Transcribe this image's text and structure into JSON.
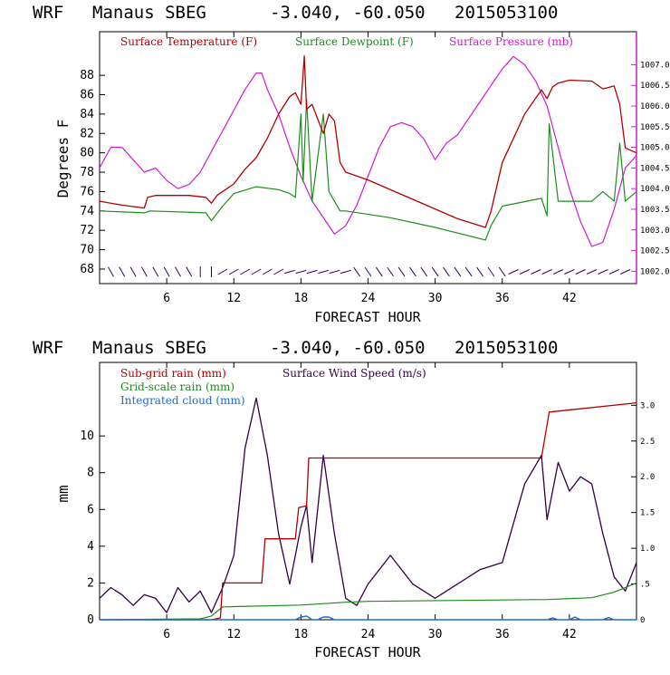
{
  "panel1": {
    "header": {
      "model": "WRF",
      "station": "Manaus SBEG",
      "coords": "-3.040, -60.050",
      "date": "2015053100"
    },
    "colors": {
      "temperature": "#b30000",
      "dewpoint": "#1e8c1e",
      "pressure": "#d21ad2",
      "wind": "#330066"
    }
  },
  "panel2": {
    "header": {
      "model": "WRF",
      "station": "Manaus SBEG",
      "coords": "-3.040, -60.050",
      "date": "2015053100"
    },
    "colors": {
      "subgrid": "#b30000",
      "gridscale": "#1e8c1e",
      "cloud": "#1a6ed2",
      "wind": "#330044"
    }
  },
  "chart_data": [
    {
      "type": "line",
      "xlabel": "FORECAST HOUR",
      "ylabel": "Degrees F",
      "x_ticks": [
        "6",
        "12",
        "18",
        "24",
        "30",
        "36",
        "42"
      ],
      "y_ticks": [
        "68",
        "70",
        "72",
        "74",
        "76",
        "78",
        "80",
        "82",
        "84",
        "86",
        "88"
      ],
      "y2_ticks": [
        "1002.0",
        "1002.5",
        "1003.0",
        "1003.5",
        "1004.0",
        "1004.5",
        "1005.0",
        "1005.5",
        "1006.0",
        "1006.5",
        "1007.0"
      ],
      "xlim": [
        0,
        48
      ],
      "ylim": [
        66.5,
        92.5
      ],
      "y2lim": [
        1001.7,
        1007.8
      ],
      "legend": [
        "Surface Temperature (F)",
        "Surface Dewpoint (F)",
        "Surface Pressure (mb)"
      ],
      "series": [
        {
          "name": "Surface Temperature (F)",
          "x": [
            0,
            2,
            4,
            4.3,
            5,
            8,
            9.5,
            10,
            10.5,
            12,
            13,
            14,
            15,
            16,
            17,
            17.5,
            18,
            18.3,
            18.5,
            19,
            20,
            20.5,
            21,
            21.5,
            22,
            24,
            28,
            32,
            34.5,
            35,
            36,
            38,
            39.5,
            40,
            40.5,
            41,
            42,
            44,
            45,
            46,
            46.5,
            47,
            48
          ],
          "values": [
            75.0,
            74.6,
            74.3,
            75.4,
            75.6,
            75.6,
            75.4,
            74.8,
            75.6,
            76.8,
            78.3,
            79.5,
            81.5,
            84.0,
            85.8,
            86.2,
            85.0,
            90.0,
            84.5,
            85.0,
            82.0,
            84.0,
            83.3,
            79.0,
            78.0,
            77.2,
            75.2,
            73.2,
            72.3,
            74.0,
            79.0,
            84.0,
            86.5,
            85.6,
            86.8,
            87.2,
            87.5,
            87.4,
            86.6,
            86.9,
            85.0,
            80.5,
            80.0
          ]
        },
        {
          "name": "Surface Dewpoint (F)",
          "x": [
            0,
            4,
            4.5,
            9.5,
            10,
            11,
            12,
            14,
            16,
            17,
            17.5,
            18,
            18.2,
            18.5,
            19,
            20,
            20.5,
            21,
            21.5,
            22,
            26,
            30,
            34.5,
            35,
            36,
            39.5,
            40,
            40.2,
            41,
            44,
            45,
            46,
            46.5,
            47,
            48
          ],
          "values": [
            74.0,
            73.8,
            74.0,
            73.8,
            73.0,
            74.5,
            75.8,
            76.5,
            76.2,
            75.8,
            75.4,
            84.0,
            77.0,
            85.5,
            75.0,
            84.0,
            76.0,
            75.0,
            74.0,
            74.0,
            73.3,
            72.3,
            71.0,
            72.5,
            74.5,
            75.3,
            73.5,
            83.0,
            75.0,
            75.0,
            76.0,
            75.0,
            81.0,
            75.0,
            76.0
          ]
        },
        {
          "name": "Surface Pressure (mb)",
          "x": [
            0,
            1,
            2,
            3,
            4,
            5,
            6,
            7,
            8,
            9,
            10,
            11,
            12,
            13,
            14,
            14.5,
            15,
            16,
            17,
            18,
            19,
            20,
            21,
            22,
            23,
            24,
            25,
            26,
            27,
            28,
            29,
            30,
            31,
            32,
            33,
            34,
            35,
            36,
            37,
            38,
            39,
            40,
            41,
            42,
            43,
            44,
            45,
            46,
            47,
            48
          ],
          "values": [
            1004.5,
            1005.0,
            1005.0,
            1004.7,
            1004.4,
            1004.5,
            1004.2,
            1004.0,
            1004.1,
            1004.4,
            1004.9,
            1005.4,
            1005.9,
            1006.4,
            1006.8,
            1006.8,
            1006.4,
            1005.8,
            1005.0,
            1004.3,
            1003.7,
            1003.3,
            1002.9,
            1003.1,
            1003.6,
            1004.3,
            1005.0,
            1005.5,
            1005.6,
            1005.5,
            1005.2,
            1004.7,
            1005.1,
            1005.3,
            1005.7,
            1006.1,
            1006.5,
            1006.9,
            1007.2,
            1007.0,
            1006.6,
            1006.0,
            1005.0,
            1004.0,
            1003.2,
            1002.6,
            1002.7,
            1003.5,
            1004.5,
            1004.8
          ]
        }
      ]
    },
    {
      "type": "line",
      "xlabel": "FORECAST HOUR",
      "ylabel": "mm",
      "x_ticks": [
        "6",
        "12",
        "18",
        "24",
        "30",
        "36",
        "42"
      ],
      "y_ticks": [
        "0",
        "2",
        "4",
        "6",
        "8",
        "10"
      ],
      "y2_ticks": [
        "0",
        ".5",
        "1.0",
        "1.5",
        "2.0",
        "2.5",
        "3.0"
      ],
      "xlim": [
        0,
        48
      ],
      "ylim": [
        0,
        14
      ],
      "y2lim": [
        0,
        3.6
      ],
      "legend": [
        "Sub-grid rain (mm)",
        "Grid-scale rain (mm)",
        "Integrated cloud (mm)",
        "Surface Wind Speed (m/s)"
      ],
      "series": [
        {
          "name": "Sub-grid rain (mm)",
          "x": [
            0,
            10,
            10.8,
            11,
            14.5,
            14.8,
            17.5,
            17.8,
            18.5,
            18.7,
            39.5,
            40.2,
            48
          ],
          "values": [
            0,
            0,
            0.1,
            2.0,
            2.0,
            4.4,
            4.4,
            6.1,
            6.2,
            8.8,
            8.8,
            11.3,
            11.8
          ]
        },
        {
          "name": "Grid-scale rain (mm)",
          "x": [
            0,
            9,
            10,
            11,
            18,
            22,
            24,
            32,
            40,
            44,
            46,
            48
          ],
          "values": [
            0,
            0.05,
            0.2,
            0.7,
            0.8,
            0.95,
            1.0,
            1.05,
            1.1,
            1.2,
            1.5,
            2.0
          ]
        },
        {
          "name": "Integrated cloud (mm)",
          "x": [
            0,
            17.5,
            18,
            18.5,
            19,
            19.5,
            20,
            20.5,
            21,
            40,
            40.5,
            41,
            42,
            42.5,
            43,
            45,
            45.5,
            46,
            48
          ],
          "values": [
            0,
            0,
            0.15,
            0.2,
            0,
            0,
            0.15,
            0.15,
            0,
            0,
            0.1,
            0,
            0,
            0.15,
            0,
            0,
            0.12,
            0,
            0
          ]
        },
        {
          "name": "Surface Wind Speed (m/s)",
          "x": [
            0,
            1,
            2,
            3,
            4,
            5,
            6,
            7,
            8,
            9,
            10,
            11,
            12,
            13,
            14,
            15,
            16,
            17,
            18,
            18.5,
            19,
            20,
            21,
            22,
            23,
            24,
            26,
            28,
            30,
            32,
            34,
            36,
            38,
            39.5,
            40,
            41,
            42,
            43,
            44,
            45,
            46,
            47,
            48
          ],
          "values": [
            0.3,
            0.45,
            0.35,
            0.2,
            0.35,
            0.3,
            0.1,
            0.45,
            0.25,
            0.4,
            0.1,
            0.45,
            0.9,
            2.4,
            3.1,
            2.3,
            1.2,
            0.5,
            1.3,
            1.6,
            0.8,
            2.3,
            1.2,
            0.3,
            0.2,
            0.5,
            0.9,
            0.5,
            0.3,
            0.5,
            0.7,
            0.8,
            1.9,
            2.3,
            1.4,
            2.2,
            1.8,
            2.0,
            1.9,
            1.2,
            0.6,
            0.4,
            0.8
          ]
        }
      ]
    }
  ]
}
